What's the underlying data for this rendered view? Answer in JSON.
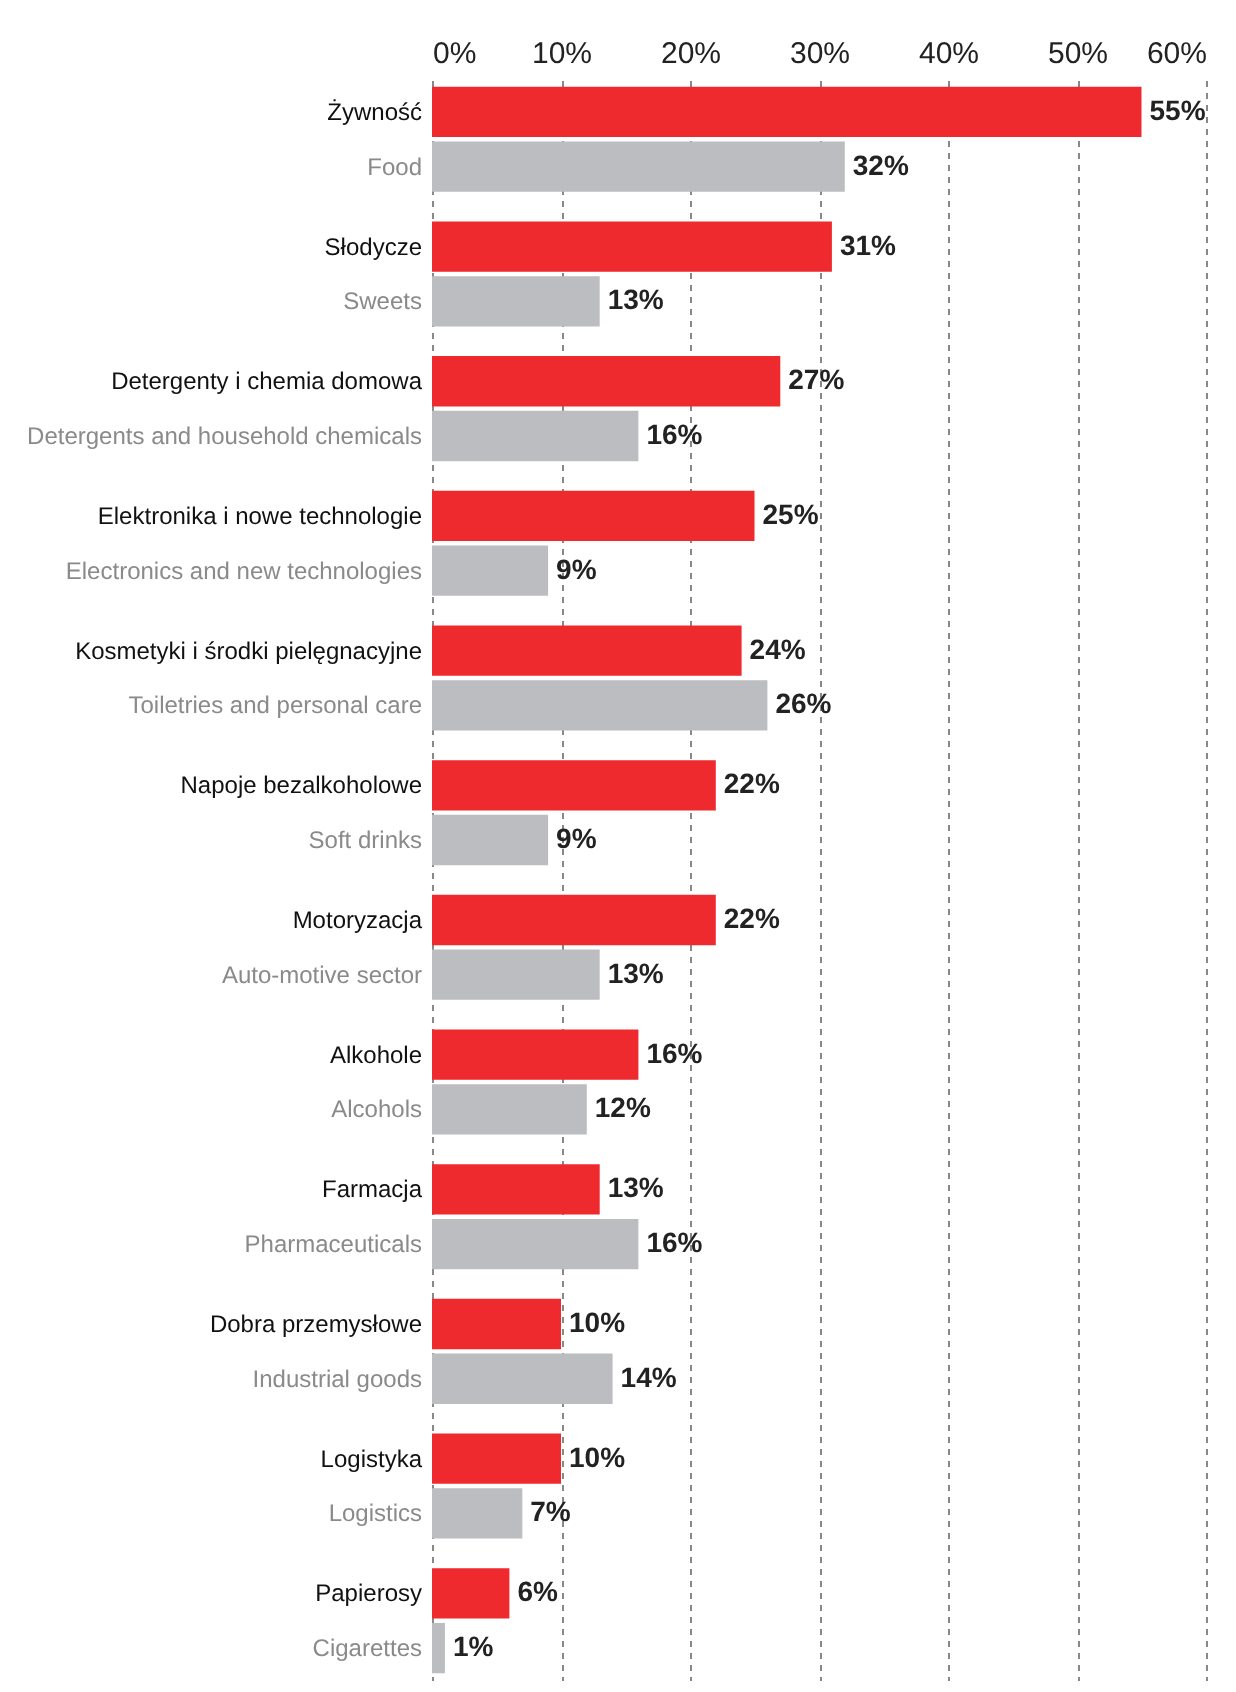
{
  "chart_data": {
    "type": "bar",
    "orientation": "horizontal",
    "categories": [
      "Żywność\nFood",
      "Słodycze\nSweets",
      "Detergenty i chemia domowa\nDetergents and household chemicals",
      "Elektronika i nowe technologie\nElectronics and new technologies",
      "Kosmetyki i środki pielęgnacyjne\nToiletries and personal care",
      "Napoje bezalkoholowe\nSoft drinks",
      "Motoryzacja\nAuto-motive sector",
      "Alkohole\nAlcohols",
      "Farmacja\nPharmaceuticals",
      "Dobra przemysłowe\nIndustrial goods",
      "Logistyka\nLogistics",
      "Papierosy\nCigarettes"
    ],
    "series": [
      {
        "color": "#ee2a2f",
        "values": [
          55,
          31,
          27,
          25,
          24,
          22,
          22,
          16,
          13,
          10,
          10,
          6
        ],
        "value_labels": [
          "55%",
          "31%",
          "27%",
          "25%",
          "24%",
          "22%",
          "22%",
          "16%",
          "13%",
          "10%",
          "10%",
          "6%"
        ]
      },
      {
        "color": "#bcbdc0",
        "values": [
          32,
          13,
          16,
          9,
          26,
          9,
          13,
          12,
          16,
          14,
          7,
          1
        ],
        "value_labels": [
          "32%",
          "13%",
          "16%",
          "9%",
          "26%",
          "9%",
          "13%",
          "12%",
          "16%",
          "14%",
          "7%",
          "1%"
        ]
      }
    ],
    "xlim": [
      0,
      60
    ],
    "xticks": [
      {
        "value": 0,
        "label": "0%"
      },
      {
        "value": 10,
        "label": "10%"
      },
      {
        "value": 20,
        "label": "20%"
      },
      {
        "value": 30,
        "label": "30%"
      },
      {
        "value": 40,
        "label": "40%"
      },
      {
        "value": 50,
        "label": "50%"
      },
      {
        "value": 60,
        "label": "60%"
      }
    ],
    "grid": "x"
  }
}
